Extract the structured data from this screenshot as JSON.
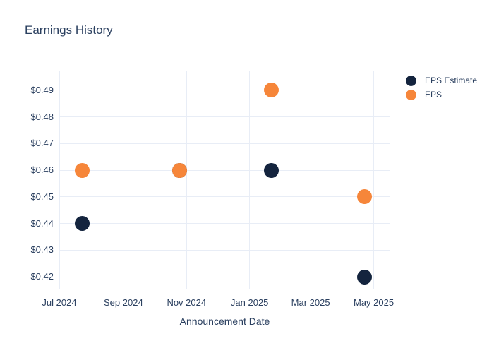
{
  "colors": {
    "text": "#2a3f5f",
    "grid": "#e8edf6",
    "background": "#ffffff",
    "eps_estimate": "#14243e",
    "eps": "#f6863a"
  },
  "legend": {
    "items": [
      {
        "label": "EPS Estimate",
        "color": "#14243e"
      },
      {
        "label": "EPS",
        "color": "#f6863a"
      }
    ]
  },
  "chart_data": {
    "type": "scatter",
    "title": "Earnings History",
    "xlabel": "Announcement Date",
    "ylabel": "",
    "grid": true,
    "legend_position": "right",
    "marker_size": 21,
    "x_range": [
      "2024-07-01",
      "2025-05-17"
    ],
    "y_range": [
      0.4155,
      0.49742
    ],
    "x_ticks": [
      {
        "label": "Jul 2024",
        "date": "2024-07-01"
      },
      {
        "label": "Sep 2024",
        "date": "2024-09-01"
      },
      {
        "label": "Nov 2024",
        "date": "2024-11-01"
      },
      {
        "label": "Jan 2025",
        "date": "2025-01-01"
      },
      {
        "label": "Mar 2025",
        "date": "2025-03-01"
      },
      {
        "label": "May 2025",
        "date": "2025-05-01"
      }
    ],
    "y_ticks": [
      {
        "label": "$0.42",
        "value": 0.42
      },
      {
        "label": "$0.43",
        "value": 0.43
      },
      {
        "label": "$0.44",
        "value": 0.44
      },
      {
        "label": "$0.45",
        "value": 0.45
      },
      {
        "label": "$0.46",
        "value": 0.46
      },
      {
        "label": "$0.47",
        "value": 0.47
      },
      {
        "label": "$0.48",
        "value": 0.48
      },
      {
        "label": "$0.49",
        "value": 0.49
      }
    ],
    "series": [
      {
        "name": "EPS Estimate",
        "color": "#14243e",
        "x": [
          "2024-07-23",
          "2024-10-25",
          "2025-01-22",
          "2025-04-22"
        ],
        "y": [
          0.44,
          0.46,
          0.46,
          0.42
        ]
      },
      {
        "name": "EPS",
        "color": "#f6863a",
        "x": [
          "2024-07-23",
          "2024-10-25",
          "2025-01-22",
          "2025-04-22"
        ],
        "y": [
          0.46,
          0.46,
          0.49,
          0.45
        ]
      }
    ]
  }
}
